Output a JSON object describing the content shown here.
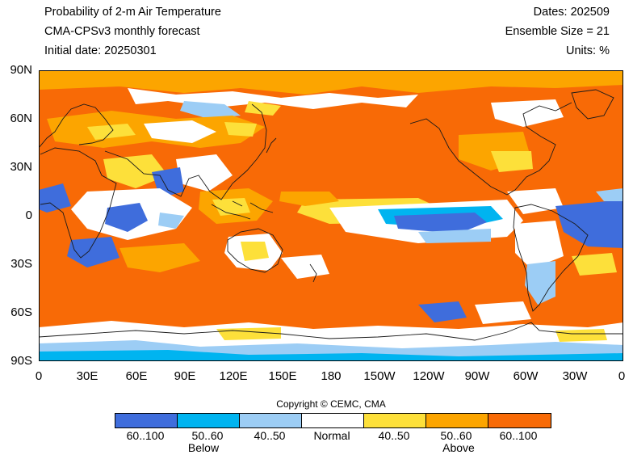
{
  "header": {
    "title": "Probability of 2-m Air Temperature",
    "model": "CMA-CPSv3 monthly forecast",
    "initial_date": "Initial date: 20250301",
    "dates": "Dates: 202509",
    "ensemble": "Ensemble Size = 21",
    "units": "Units: %"
  },
  "map": {
    "lat_labels": [
      "90N",
      "60N",
      "30N",
      "0",
      "30S",
      "60S",
      "90S"
    ],
    "lon_labels": [
      "0",
      "30E",
      "60E",
      "90E",
      "120E",
      "150E",
      "180",
      "150W",
      "120W",
      "90W",
      "60W",
      "30W",
      "0"
    ],
    "colors": {
      "below_high": "#3f6ddc",
      "below_mid": "#00b4f0",
      "below_low": "#9ccdf5",
      "normal": "#ffffff",
      "above_low": "#fde03a",
      "above_mid": "#fca500",
      "above_high": "#f86a06",
      "coast": "#1a1a1a"
    }
  },
  "copyright": "Copyright © CEMC, CMA",
  "legend": {
    "colors": [
      "#3f6ddc",
      "#00b4f0",
      "#9ccdf5",
      "#ffffff",
      "#fde03a",
      "#fca500",
      "#f86a06"
    ],
    "labels": [
      "60..100",
      "50..60",
      "40..50",
      "Normal",
      "40..50",
      "50..60",
      "60..100"
    ],
    "below": "Below",
    "above": "Above"
  }
}
